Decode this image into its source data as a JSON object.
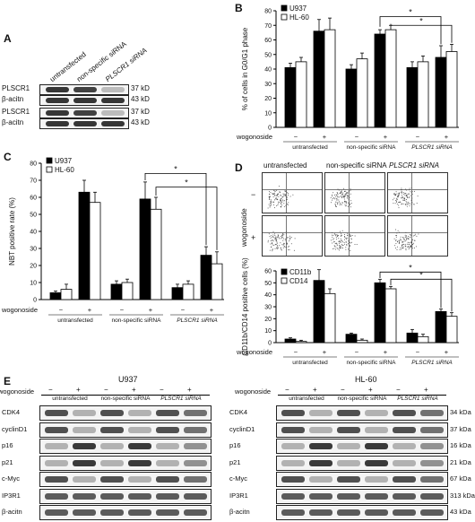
{
  "panelA": {
    "label": "A",
    "lanes": [
      "untransfected",
      "non-specific siRNA",
      "PLSCR1 siRNA"
    ],
    "rows": [
      {
        "protein": "PLSCR1",
        "size": "37 kD"
      },
      {
        "protein": "β-acitn",
        "size": "43 kD"
      },
      {
        "protein": "PLSCR1",
        "size": "37 kD"
      },
      {
        "protein": "β-acitn",
        "size": "43 kD"
      }
    ]
  },
  "panelB": {
    "label": "B",
    "ylabel": "% of cells in G0/G1 phase",
    "treatment_label": "wogonoside",
    "groups": [
      "untransfected",
      "non-specific siRNA",
      "PLSCR1 siRNA"
    ],
    "signs": [
      "−",
      "+",
      "−",
      "+",
      "−",
      "+"
    ],
    "sig": [
      "*",
      "*"
    ]
  },
  "panelC": {
    "label": "C",
    "ylabel": "NBT positive rate (%)",
    "treatment_label": "wogonoside",
    "groups": [
      "untransfected",
      "non-specific siRNA",
      "PLSCR1 siRNA"
    ],
    "signs": [
      "−",
      "+",
      "−",
      "+",
      "−",
      "+"
    ],
    "sig": [
      "*",
      "*"
    ]
  },
  "panelD": {
    "label": "D",
    "columns": [
      "untransfected",
      "non-specific siRNA",
      "PLSCR1 siRNA"
    ],
    "rows_label": "wogonoside",
    "row_signs": [
      "−",
      "+"
    ],
    "ylabel": "CD11b/CD14 positive cells (%)",
    "treatment_label": "wogonoside",
    "groups": [
      "untransfected",
      "non-specific siRNA",
      "PLSCR1 siRNA"
    ],
    "signs": [
      "−",
      "+",
      "−",
      "+",
      "−",
      "+"
    ],
    "sig": [
      "*",
      "*"
    ]
  },
  "panelE": {
    "label": "E",
    "left_title": "U937",
    "right_title": "HL-60",
    "treatment_label": "wogonoside",
    "signs": [
      "−",
      "+",
      "−",
      "+",
      "−",
      "+"
    ],
    "groups": [
      "untransfected",
      "non-specific siRNA",
      "PLSCR1 siRNA"
    ],
    "proteins": [
      "CDK4",
      "cyclinD1",
      "p16",
      "p21",
      "c-Myc",
      "IP3R1",
      "β-acitn"
    ],
    "sizes": [
      "34 kDa",
      "37 kDa",
      "16 kDa",
      "21 kDa",
      "67 kDa",
      "313 kDa",
      "43 kDa"
    ]
  },
  "chart_data": [
    {
      "panel": "B",
      "type": "bar",
      "categories": [
        "untransfected −",
        "untransfected +",
        "non-specific siRNA −",
        "non-specific siRNA +",
        "PLSCR1 siRNA −",
        "PLSCR1 siRNA +"
      ],
      "series": [
        {
          "name": "U937",
          "values": [
            41,
            66,
            40,
            64,
            41,
            48
          ],
          "errors": [
            3,
            8,
            3,
            3,
            4,
            8
          ]
        },
        {
          "name": "HL-60",
          "values": [
            45,
            67,
            47,
            67,
            45,
            52
          ],
          "errors": [
            3,
            8,
            4,
            3,
            4,
            5
          ]
        }
      ],
      "ylim": [
        0,
        80
      ],
      "yticks": [
        0,
        10,
        20,
        30,
        40,
        50,
        60,
        70,
        80
      ],
      "colors": {
        "U937": "#000000",
        "HL-60": "#ffffff"
      }
    },
    {
      "panel": "C",
      "type": "bar",
      "categories": [
        "untransfected −",
        "untransfected +",
        "non-specific siRNA −",
        "non-specific siRNA +",
        "PLSCR1 siRNA −",
        "PLSCR1 siRNA +"
      ],
      "series": [
        {
          "name": "U937",
          "values": [
            4,
            63,
            9,
            59,
            7,
            26
          ],
          "errors": [
            1,
            7,
            2,
            10,
            2,
            5
          ]
        },
        {
          "name": "HL-60",
          "values": [
            6,
            57,
            10,
            53,
            9,
            21
          ],
          "errors": [
            3,
            6,
            2,
            7,
            2,
            7
          ]
        }
      ],
      "ylim": [
        0,
        80
      ],
      "yticks": [
        0,
        10,
        20,
        30,
        40,
        50,
        60,
        70,
        80
      ],
      "colors": {
        "U937": "#000000",
        "HL-60": "#ffffff"
      }
    },
    {
      "panel": "D",
      "type": "bar",
      "categories": [
        "untransfected −",
        "untransfected +",
        "non-specific siRNA −",
        "non-specific siRNA +",
        "PLSCR1 siRNA −",
        "PLSCR1 siRNA +"
      ],
      "series": [
        {
          "name": "CD11b",
          "values": [
            3,
            52,
            7,
            50,
            8,
            26
          ],
          "errors": [
            1,
            9,
            1,
            3,
            3,
            2
          ]
        },
        {
          "name": "CD14",
          "values": [
            1,
            41,
            2,
            45,
            5,
            22
          ],
          "errors": [
            1,
            4,
            1,
            2,
            2,
            3
          ]
        }
      ],
      "ylim": [
        0,
        60
      ],
      "yticks": [
        0,
        10,
        20,
        30,
        40,
        50,
        60
      ],
      "colors": {
        "CD11b": "#000000",
        "CD14": "#ffffff"
      }
    }
  ]
}
